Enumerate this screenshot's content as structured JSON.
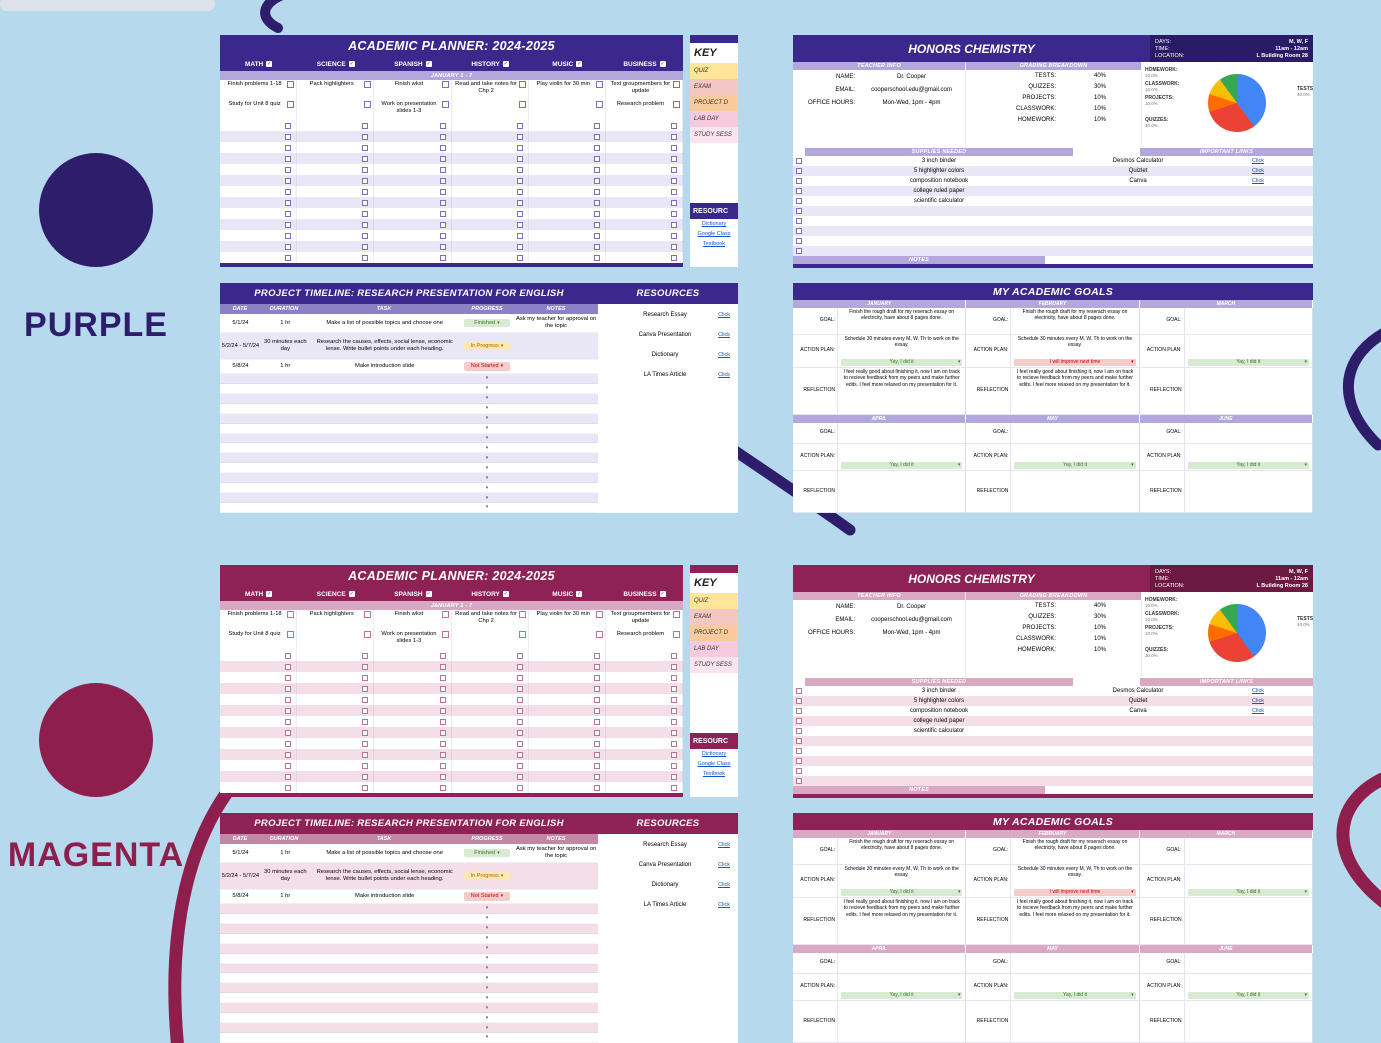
{
  "colors": {
    "background": "#b7d9ee",
    "purple": "#2e1d6b",
    "magenta": "#8e1f4d",
    "purple_sheet_header": "#3a288c",
    "magenta_sheet_header": "#8e2256",
    "link_blue": "#1155cc",
    "chip_green_bg": "#d9ead3",
    "chip_green_text": "#38761d",
    "chip_yellow_bg": "#fce8b2",
    "chip_yellow_text": "#b45f06",
    "chip_red_bg": "#f4cccc",
    "chip_red_text": "#cc0000"
  },
  "swatches": {
    "purple": {
      "label": "PURPLE",
      "color": "#2e1d6b"
    },
    "magenta": {
      "label": "MAGENTA",
      "color": "#8e1f4d"
    }
  },
  "planner": {
    "title": "ACADEMIC PLANNER: 2024-2025",
    "subjects": [
      "MATH",
      "SCIENCE",
      "SPANISH",
      "HISTORY",
      "MUSIC",
      "BUSINESS"
    ],
    "week_label": "JANUARY 1 - 7",
    "row1": [
      "Finish problems 1-18",
      "Pack highlighters",
      "Finish wkst",
      "Read and take notes for Chp 2",
      "Play violin for 30 min",
      "Text groupmembers for update"
    ],
    "row2": [
      "Study for Unit 8 quiz",
      "",
      "Work on presentation slides 1-3",
      "",
      "",
      "Research problem"
    ]
  },
  "key": {
    "title": "KEY",
    "items": [
      {
        "label": "QUIZ",
        "color": "#ffe599"
      },
      {
        "label": "EXAM",
        "color": "#f4c7c3"
      },
      {
        "label": "PROJECT D",
        "color": "#f9cb9c"
      },
      {
        "label": "LAB DAY",
        "color": "#f7cade"
      },
      {
        "label": "STUDY SESS",
        "color": "#fce4ef"
      }
    ],
    "resources_title": "RESOURC",
    "links": [
      "Dictionary",
      "Google Class",
      "Textbook"
    ]
  },
  "chemistry": {
    "title": "HONORS CHEMISTRY",
    "schedule": [
      {
        "label": "DAYS:",
        "value": "M, W, F"
      },
      {
        "label": "TIME:",
        "value": "11am - 12am"
      },
      {
        "label": "LOCATION:",
        "value": "L Building Room 28"
      }
    ],
    "teacher_info": {
      "heading": "TEACHER INFO",
      "rows": [
        {
          "label": "NAME:",
          "value": "Dr. Cooper"
        },
        {
          "label": "EMAIL:",
          "value": "cooperschool.edu@gmail.com"
        },
        {
          "label": "OFFICE HOURS:",
          "value": "Mon-Wed, 1pm - 4pm"
        }
      ]
    },
    "grading": {
      "heading": "GRADING BREAKDOWN",
      "rows": [
        {
          "label": "TESTS:",
          "value": "40%"
        },
        {
          "label": "QUIZZES:",
          "value": "30%"
        },
        {
          "label": "PROJECTS:",
          "value": "10%"
        },
        {
          "label": "CLASSWORK:",
          "value": "10%"
        },
        {
          "label": "HOMEWORK:",
          "value": "10%"
        }
      ]
    },
    "supplies": {
      "heading": "SUPPLIES NEEDED",
      "items": [
        "3 inch binder",
        "5 highlighter colors",
        "composition notebook",
        "college ruled paper",
        "scientific calculator"
      ]
    },
    "links": {
      "heading": "IMPORTANT LINKS",
      "items": [
        {
          "label": "Desmos Calculator",
          "link": "Click"
        },
        {
          "label": "Quizlet",
          "link": "Click"
        },
        {
          "label": "Canva",
          "link": "Click"
        }
      ]
    },
    "notes_heading": "NOTES"
  },
  "chart_data": {
    "type": "pie",
    "title": "Grading breakdown",
    "labels": [
      "TESTS",
      "QUIZZES",
      "PROJECTS",
      "CLASSWORK",
      "HOMEWORK"
    ],
    "values": [
      40,
      30,
      10,
      10,
      10
    ],
    "colors": [
      "#4285f4",
      "#ea4335",
      "#ff6d01",
      "#fbbc04",
      "#34a853"
    ],
    "legend": [
      {
        "label": "HOMEWORK:",
        "pct": "10.0%"
      },
      {
        "label": "CLASSWORK:",
        "pct": "10.0%"
      },
      {
        "label": "PROJECTS:",
        "pct": "10.0%"
      },
      {
        "label": "QUIZZES:",
        "pct": "30.0%"
      },
      {
        "label": "TESTS:",
        "pct": "40.0%"
      }
    ]
  },
  "timeline": {
    "title": "PROJECT TIMELINE: RESEARCH PRESENTATION FOR ENGLISH",
    "headers": [
      "DATE",
      "DURATION",
      "TASK",
      "PROGRESS",
      "NOTES"
    ],
    "rows": [
      {
        "date": "5/1/24",
        "duration": "1 hr",
        "task": "Make a list of possible topics and choose one",
        "progress": "Finished",
        "notes": "Ask my teacher for approval on the topic"
      },
      {
        "date": "5/2/24 - 5/7/24",
        "duration": "30 minutes each day",
        "task": "Research the causes, effects, social lense, economic lense. Write bullet points under each heading.",
        "progress": "In Progress",
        "notes": ""
      },
      {
        "date": "5/8/24",
        "duration": "1 hr",
        "task": "Make introduction slide",
        "progress": "Not Started",
        "notes": ""
      }
    ],
    "resources": {
      "title": "RESOURCES",
      "items": [
        {
          "label": "Research Essay",
          "link": "Click"
        },
        {
          "label": "Canva Presentation",
          "link": "Click"
        },
        {
          "label": "Dictionary",
          "link": "Click"
        },
        {
          "label": "LA Times Article",
          "link": "Click"
        }
      ]
    }
  },
  "goals": {
    "title": "MY ACADEMIC GOALS",
    "labels": {
      "goal": "GOAL:",
      "action": "ACTION PLAN:",
      "reflection": "REFLECTION"
    },
    "months_top": [
      "JANUARY",
      "FEBRUARY",
      "MARCH"
    ],
    "months_bottom": [
      "APRIL",
      "MAY",
      "JUNE"
    ],
    "goal_text": "Finish the rough draft for my reserach essay on electricity, have about 8 pages done.",
    "action_text": "Schedule 30 minutes every M, W, Th to work on the essay.",
    "reflection_text": "I feel really good about finishing it, now I am on track to recieve feedback from my peers and make further edits. I feel more relaxed on my presentation for it.",
    "chip_yes": "Yay, I did it",
    "chip_improve": "I will improve next time"
  }
}
